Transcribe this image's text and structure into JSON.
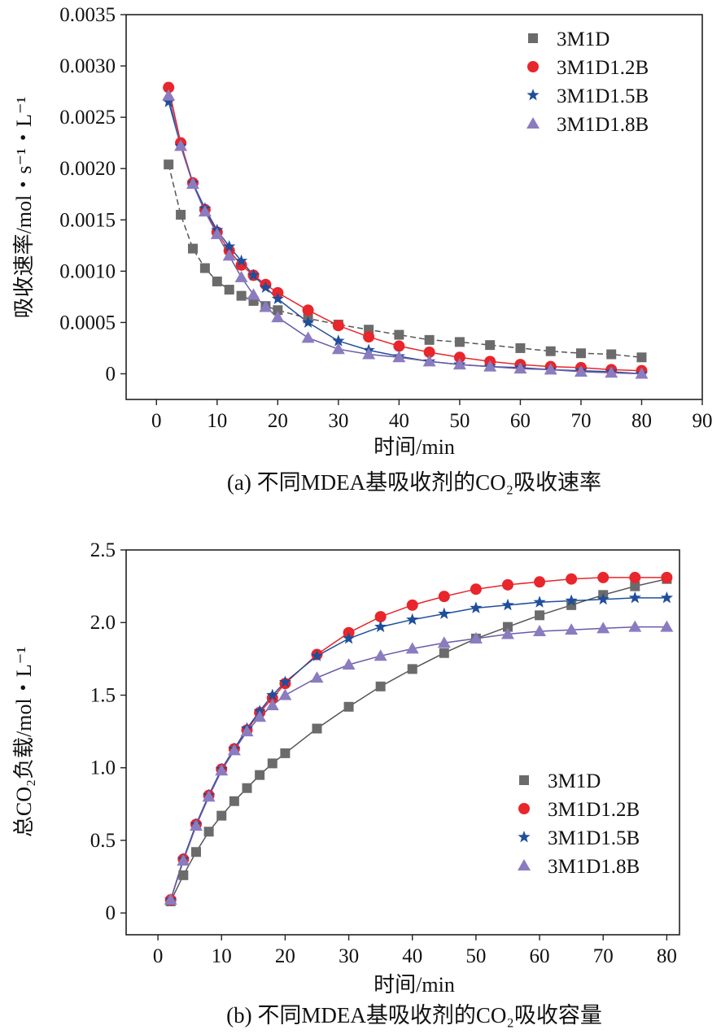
{
  "chart_data": [
    {
      "id": "a",
      "type": "line",
      "caption": "(a) 不同MDEA基吸收剂的CO₂吸收速率",
      "xlabel": "时间/min",
      "ylabel": "吸收速率/mol・s⁻¹・L⁻¹",
      "xlim": [
        -5,
        90
      ],
      "ylim": [
        -0.00025,
        0.0035
      ],
      "xticks": [
        0,
        10,
        20,
        30,
        40,
        50,
        60,
        70,
        80,
        90
      ],
      "yticks": [
        0,
        0.0005,
        0.001,
        0.0015,
        0.002,
        0.0025,
        0.003,
        0.0035
      ],
      "ytick_labels": [
        "0",
        "0.0005",
        "0.0010",
        "0.0015",
        "0.0020",
        "0.0025",
        "0.0030",
        "0.0035"
      ],
      "legend_position": "top-right",
      "series": [
        {
          "name": "3M1D",
          "marker": "square",
          "color": "#6b6b6b",
          "line_color": "#555555",
          "dashed": true,
          "x": [
            2,
            4,
            6,
            8,
            10,
            12,
            14,
            16,
            18,
            20,
            25,
            30,
            35,
            40,
            45,
            50,
            55,
            60,
            65,
            70,
            75,
            80
          ],
          "y": [
            0.00204,
            0.00155,
            0.00122,
            0.00103,
            0.0009,
            0.00082,
            0.00076,
            0.00071,
            0.00066,
            0.00062,
            0.00054,
            0.00048,
            0.00043,
            0.00038,
            0.00033,
            0.00031,
            0.00028,
            0.00025,
            0.00022,
            0.0002,
            0.00019,
            0.00016
          ]
        },
        {
          "name": "3M1D1.2B",
          "marker": "circle",
          "color": "#e8262b",
          "line_color": "#e8262b",
          "dashed": false,
          "x": [
            2,
            4,
            6,
            8,
            10,
            12,
            14,
            16,
            18,
            20,
            25,
            30,
            35,
            40,
            45,
            50,
            55,
            60,
            65,
            70,
            75,
            80
          ],
          "y": [
            0.00279,
            0.00225,
            0.00186,
            0.0016,
            0.00138,
            0.0012,
            0.00106,
            0.00096,
            0.00087,
            0.00079,
            0.00062,
            0.00047,
            0.00036,
            0.00027,
            0.00021,
            0.00016,
            0.00012,
            9e-05,
            7e-05,
            6e-05,
            4e-05,
            3e-05
          ]
        },
        {
          "name": "3M1D1.5B",
          "marker": "star",
          "color": "#1f4e9c",
          "line_color": "#1f4e9c",
          "dashed": false,
          "x": [
            2,
            4,
            6,
            8,
            10,
            12,
            14,
            16,
            18,
            20,
            25,
            30,
            35,
            40,
            45,
            50,
            55,
            60,
            65,
            70,
            75,
            80
          ],
          "y": [
            0.00265,
            0.00222,
            0.00186,
            0.00161,
            0.0014,
            0.00124,
            0.0011,
            0.00096,
            0.00084,
            0.00073,
            0.0005,
            0.00032,
            0.00023,
            0.00017,
            0.00012,
            9e-05,
            7e-05,
            6e-05,
            4e-05,
            3e-05,
            2e-05,
            0.0
          ]
        },
        {
          "name": "3M1D1.8B",
          "marker": "triangle",
          "color": "#8b7cc0",
          "line_color": "#6a5aa8",
          "dashed": false,
          "x": [
            2,
            4,
            6,
            8,
            10,
            12,
            14,
            16,
            18,
            20,
            25,
            30,
            35,
            40,
            45,
            50,
            55,
            60,
            65,
            70,
            75,
            80
          ],
          "y": [
            0.00271,
            0.00222,
            0.00185,
            0.00158,
            0.00136,
            0.00115,
            0.00094,
            0.00077,
            0.00065,
            0.00055,
            0.00035,
            0.00024,
            0.00019,
            0.00016,
            0.00012,
            9e-05,
            7e-05,
            5e-05,
            4e-05,
            2e-05,
            1e-05,
            0.0
          ]
        }
      ]
    },
    {
      "id": "b",
      "type": "line",
      "caption": "(b) 不同MDEA基吸收剂的CO₂吸收容量",
      "xlabel": "时间/min",
      "ylabel": "总CO₂负载/mol・L⁻¹",
      "xlim": [
        -5,
        82
      ],
      "ylim": [
        -0.15,
        2.5
      ],
      "xticks": [
        0,
        10,
        20,
        30,
        40,
        50,
        60,
        70,
        80
      ],
      "yticks": [
        0,
        0.5,
        1.0,
        1.5,
        2.0,
        2.5
      ],
      "ytick_labels": [
        "0",
        "0.5",
        "1.0",
        "1.5",
        "2.0",
        "2.5"
      ],
      "legend_position": "lower-right",
      "series": [
        {
          "name": "3M1D",
          "marker": "square",
          "color": "#6b6b6b",
          "line_color": "#555555",
          "dashed": false,
          "x": [
            2,
            4,
            6,
            8,
            10,
            12,
            14,
            16,
            18,
            20,
            25,
            30,
            35,
            40,
            45,
            50,
            55,
            60,
            65,
            70,
            75,
            80
          ],
          "y": [
            0.08,
            0.26,
            0.42,
            0.56,
            0.67,
            0.77,
            0.86,
            0.95,
            1.03,
            1.1,
            1.27,
            1.42,
            1.56,
            1.68,
            1.79,
            1.89,
            1.97,
            2.05,
            2.12,
            2.19,
            2.25,
            2.3
          ]
        },
        {
          "name": "3M1D1.2B",
          "marker": "circle",
          "color": "#e8262b",
          "line_color": "#e8262b",
          "dashed": false,
          "x": [
            2,
            4,
            6,
            8,
            10,
            12,
            14,
            16,
            18,
            20,
            25,
            30,
            35,
            40,
            45,
            50,
            55,
            60,
            65,
            70,
            75,
            80
          ],
          "y": [
            0.09,
            0.37,
            0.61,
            0.81,
            0.99,
            1.13,
            1.26,
            1.38,
            1.48,
            1.58,
            1.78,
            1.93,
            2.04,
            2.12,
            2.18,
            2.23,
            2.26,
            2.28,
            2.3,
            2.31,
            2.31,
            2.31
          ]
        },
        {
          "name": "3M1D1.5B",
          "marker": "star",
          "color": "#1f4e9c",
          "line_color": "#1f4e9c",
          "dashed": false,
          "x": [
            2,
            4,
            6,
            8,
            10,
            12,
            14,
            16,
            18,
            20,
            25,
            30,
            35,
            40,
            45,
            50,
            55,
            60,
            65,
            70,
            75,
            80
          ],
          "y": [
            0.09,
            0.37,
            0.61,
            0.81,
            0.99,
            1.13,
            1.27,
            1.39,
            1.5,
            1.59,
            1.77,
            1.89,
            1.97,
            2.02,
            2.06,
            2.1,
            2.12,
            2.14,
            2.15,
            2.16,
            2.17,
            2.17
          ]
        },
        {
          "name": "3M1D1.8B",
          "marker": "triangle",
          "color": "#8b7cc0",
          "line_color": "#6a5aa8",
          "dashed": false,
          "x": [
            2,
            4,
            6,
            8,
            10,
            12,
            14,
            16,
            18,
            20,
            25,
            30,
            35,
            40,
            45,
            50,
            55,
            60,
            65,
            70,
            75,
            80
          ],
          "y": [
            0.09,
            0.36,
            0.6,
            0.8,
            0.98,
            1.12,
            1.25,
            1.35,
            1.43,
            1.5,
            1.62,
            1.71,
            1.77,
            1.82,
            1.86,
            1.89,
            1.92,
            1.94,
            1.95,
            1.96,
            1.97,
            1.97
          ]
        }
      ]
    }
  ]
}
